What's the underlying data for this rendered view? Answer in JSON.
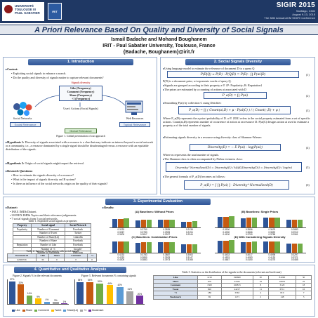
{
  "header": {
    "univ_line1": "UNIVERSITÉ",
    "univ_line2": "TOULOUSE III",
    "univ_line3": "PAUL SABATIER",
    "lab_logo": "IRIT",
    "conf_brand": "SIGIR 2015",
    "conf_place": "Santiago, Chile",
    "conf_dates": "August 9-13, 2015",
    "conf_name": "The 38th Annual ACM SIGIR Conference"
  },
  "title": "A Priori Relevance Based On Quality and Diversity of Social Signals",
  "authors": "Ismail Badache and Mohand Boughanem",
  "affiliation": "IRIT - Paul Sabatier University, Toulouse, France",
  "emails": "{Badache, Boughanem}@irit.fr",
  "sections": {
    "s1": "1. Introduction",
    "s2": "2. Social Signals Diversity",
    "s3": "3. Experimental Evaluation",
    "s4": "4. Quantitative and Qualitative Analysis"
  },
  "intro": {
    "context_label": "Context:",
    "context_items": [
      "Exploiting social signals to enhance a search.",
      "Do the quality and diversity of signals matter to capture relevant documents?"
    ],
    "fig_center_title": "Signals diversity",
    "fig_signals": [
      "Like (Frequency)",
      "Comment (Frequency)",
      "Share (Frequency)",
      "+1 (Frequency)"
    ],
    "fig_users": "User's Actions (Social Signals)",
    "fig_left": "Social Networks",
    "fig_right": "Web Resources",
    "tag_social": "Social Relevance",
    "tag_topical": "Topical Relevance",
    "tag_global": "Global Relevance",
    "fig_caption": "Figure 1. Global presentation of our approach",
    "hyp1_label": "Hypothesis 1:",
    "hyp1_text": "Diversity of signals associated with a resource is a clue that may indicate an interest beyond a social network or a community, i.e., a resource dominated by a single signal should be disadvantaged versus a resource with an equitable distribution of the signals.",
    "hyp2_label": "Hypothesis 2:",
    "hyp2_text": "Origin of social signals might impact the retrieval.",
    "rq_label": "Research Questions:",
    "rq_items": [
      "How to estimate the signals diversity of a resource?",
      "What is the impact of signals diversity on IR system?",
      "Is there an influence of the social networks origin on the quality of their signals?"
    ]
  },
  "model": {
    "intro_text": "Using language model to estimate the relevance of document D to a query Q",
    "eq1": "P(D|Q) ≈ P(D) · P(Q|D) = P(D) · ∏ P(wi|D)",
    "eq1_num": "(1)",
    "note1": "P(D) is a document prior; wi represents words of query Q.",
    "note2": "Signals are grouped according to their property a ∈ {P: Popularity; R: Reputation}",
    "note3": "The priors are estimated by a counting of actions ai associated with D",
    "eq2": "P_a(D) = ∏ P(ai)",
    "eq2_num": "(2)",
    "smooth": "Smoothing P(ai) by collection C using Dirichlet:",
    "eq3": "P_a(D) = ∏ ( Count(ai,D) + μ · P(ai|C) ) / ( Count(·,D) + μ )",
    "eq3_num": "(3)",
    "where1": "Where P_a(D) represents the a priori probability of D. a ∈ {P,R} refers to the social property estimated from a set of specific actions. Count(ai,D) represents number of occurrence of action ai on resource D. P(ai|C) designs action ai used to estimate a property a of the total number of signals.",
    "shannon": "Estimating signals diversity in a resource using diversity class of Shannon-Wiener:",
    "eq4": "Diversity(D) = − Σ P(ai) · log(P(ai))",
    "eq4_num": "(4)",
    "where_m": "Where m represents the total number of signals.",
    "pielou": "The Shannon class is often accompanied by Pielou evenness class:",
    "eq5": "Diversity^Normalized(D) = Diversity(D) / MAX(Diversity(D)) = Diversity(D) / log(m)",
    "eq5_num": "(5)",
    "general": "The general formula of P_a(D) becomes as follows:",
    "eq6": "P_a(D) = [ ∏ P(ai) ] · Diversity^Normalized(D)",
    "eq6_num": "(6)"
  },
  "experiments": {
    "dataset_label": "Dataset:",
    "dataset_items": [
      "INEX IMDb Dataset.",
      "30 INEX IMDb Topics and their relevance judgements.",
      "7 social signals from 5 social networks."
    ],
    "table1_caption": "Table 1. Exploited social signals as properties",
    "table1_header": [
      "Property",
      "Social signal",
      "Social Network"
    ],
    "table1_rows": [
      [
        "Popularity",
        "Number of Comment",
        "Facebook"
      ],
      [
        "",
        "Number of Tweet",
        "Twitter"
      ],
      [
        "",
        "Number of Share(Lk)",
        "LinkedIn"
      ],
      [
        "",
        "Number of Share",
        "Facebook"
      ],
      [
        "Reputation",
        "Number of Like",
        "Facebook"
      ],
      [
        "",
        "Number of +1",
        "Google+"
      ],
      [
        "",
        "Number of Bookmark",
        "Delicious"
      ]
    ],
    "table2_caption": "Table 2. Instance of document with social signals",
    "table2_header": [
      "Document id",
      "Like",
      "Share",
      "Comment",
      "+1"
    ],
    "table2_row": [
      "tt2300726",
      "30",
      "0",
      "0",
      "0"
    ],
    "table2_header2": [
      "Tweet",
      "Bookmark",
      "Tweet",
      "Share(Lin)"
    ],
    "table2_row2": [
      "0",
      "0",
      "0",
      "0"
    ],
    "results_label": "Results:",
    "res_a_title": "(A) Baselines: Without Priors",
    "res_b_title": "(B) Baselines: Single Priors",
    "res_c_title": "(C) Baselines: Combination Priors",
    "res_d_title": "(D) With Considering Signals Diversity",
    "res_cols": [
      "P@10",
      "P@20",
      "nDCG",
      "MAP"
    ],
    "res_a_rows": [
      [
        "0.3233",
        "0.2750",
        "0.2835",
        "0.2138"
      ],
      [
        "0.3267",
        "0.2783",
        "0.2905",
        "0.2194"
      ],
      [
        "0.3300",
        "0.2817",
        "0.2927",
        "0.2244"
      ]
    ],
    "res_b_rows": [
      [
        "0.3900",
        "0.3556",
        "0.3679",
        "0.2883"
      ],
      [
        "0.4000",
        "0.3666",
        "0.3692",
        "0.2912"
      ],
      [
        "0.4100",
        "0.3700",
        "0.3758",
        "0.2961"
      ]
    ],
    "res_c_rows": [
      [
        "0.4233",
        "0.3783",
        "0.3887",
        "0.3063"
      ],
      [
        "0.4233",
        "0.3850",
        "0.3933",
        "0.3147"
      ],
      [
        "0.4300",
        "0.3883",
        "0.3973",
        "0.3168"
      ]
    ],
    "res_d_rows": [
      [
        "0.4433",
        "0.4017",
        "0.4098",
        "0.3297"
      ],
      [
        "0.4533",
        "0.4083",
        "0.4133",
        "0.3371"
      ],
      [
        "0.4667",
        "0.4150",
        "0.4275",
        "0.3485"
      ]
    ]
  },
  "analysis": {
    "fig2_caption": "Figure 2. Signals % in the relevant documents",
    "fig3_caption": "Figure 3. Relevant documents % containing signals",
    "legend": [
      "Like",
      "Share",
      "Comment",
      "Tweet",
      "Share(Lk)",
      "+1",
      "Bookmark"
    ],
    "table5_caption": "Table 5. Statistics on the distribution of the signals in the documents (relevant and irrelevant)",
    "table5_rows": [
      [
        "Like",
        "1210",
        "196600",
        "30",
        "81090",
        "50"
      ],
      [
        "Share",
        "670",
        "22441",
        "19",
        "10870",
        "22"
      ],
      [
        "Comment",
        "1300",
        "166815",
        "8",
        "3120",
        "18"
      ],
      [
        "Tweet",
        "820",
        "44217",
        "11",
        "6711",
        "16"
      ],
      [
        "+1",
        "186",
        "3363",
        "4",
        "810",
        "7"
      ],
      [
        "Bookmark",
        "69",
        "1271",
        "2",
        "148",
        "3"
      ]
    ]
  },
  "chart_data": [
    {
      "type": "bar",
      "categories": [
        "Like",
        "Share",
        "Comment",
        "Tweet",
        "Share(Lk)",
        "+1",
        "Bookmark"
      ],
      "values": [
        37,
        32,
        14,
        9,
        4,
        3,
        1
      ]
    },
    {
      "type": "bar",
      "categories": [
        "Like",
        "Share",
        "Comment",
        "Tweet",
        "Share(Lk)",
        "+1",
        "Bookmark"
      ],
      "values": [
        54,
        54,
        50,
        46,
        42,
        31,
        20
      ]
    }
  ],
  "colors": {
    "navy": "#1f3864",
    "section": "#2f5597",
    "series": [
      "#2f5597",
      "#c55a11",
      "#70ad47",
      "#ffc000",
      "#5b9bd5",
      "#a5a5a5",
      "#7030a0"
    ]
  }
}
